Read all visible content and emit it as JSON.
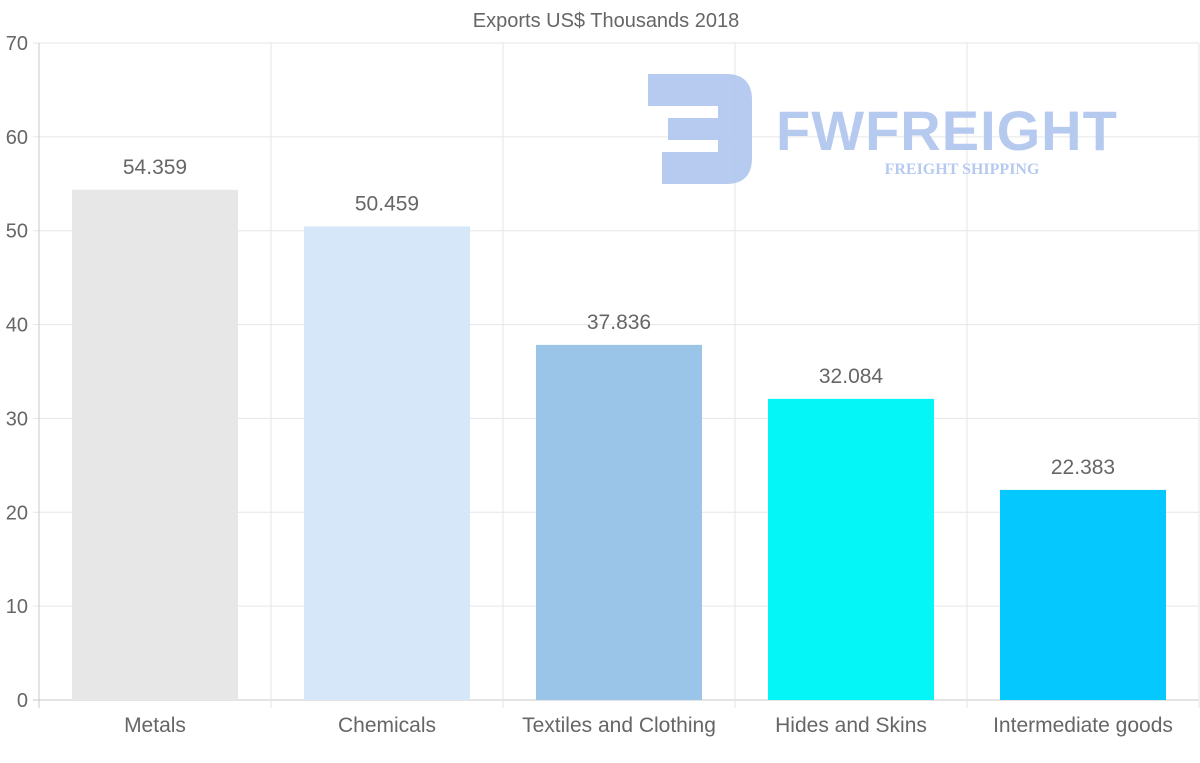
{
  "chart_data": {
    "type": "bar",
    "title": "Exports US$ Thousands 2018",
    "categories": [
      "Metals",
      "Chemicals",
      "Textiles and Clothing",
      "Hides and Skins",
      "Intermediate goods"
    ],
    "values": [
      54.359,
      50.459,
      37.836,
      32.084,
      22.383
    ],
    "value_labels": [
      "54.359",
      "50.459",
      "37.836",
      "32.084",
      "22.383"
    ],
    "colors": [
      "#e7e7e7",
      "#d6e7f9",
      "#9ac4e8",
      "#05f6f6",
      "#04c8fe"
    ],
    "ylim": [
      0,
      70
    ],
    "yticks": [
      0,
      10,
      20,
      30,
      40,
      50,
      60,
      70
    ],
    "xlabel": "",
    "ylabel": "",
    "grid": true,
    "legend": "none"
  },
  "watermark": {
    "brand": "FWFREIGHT",
    "tagline": "FREIGHT SHIPPING",
    "color": "#b3c8f0"
  }
}
